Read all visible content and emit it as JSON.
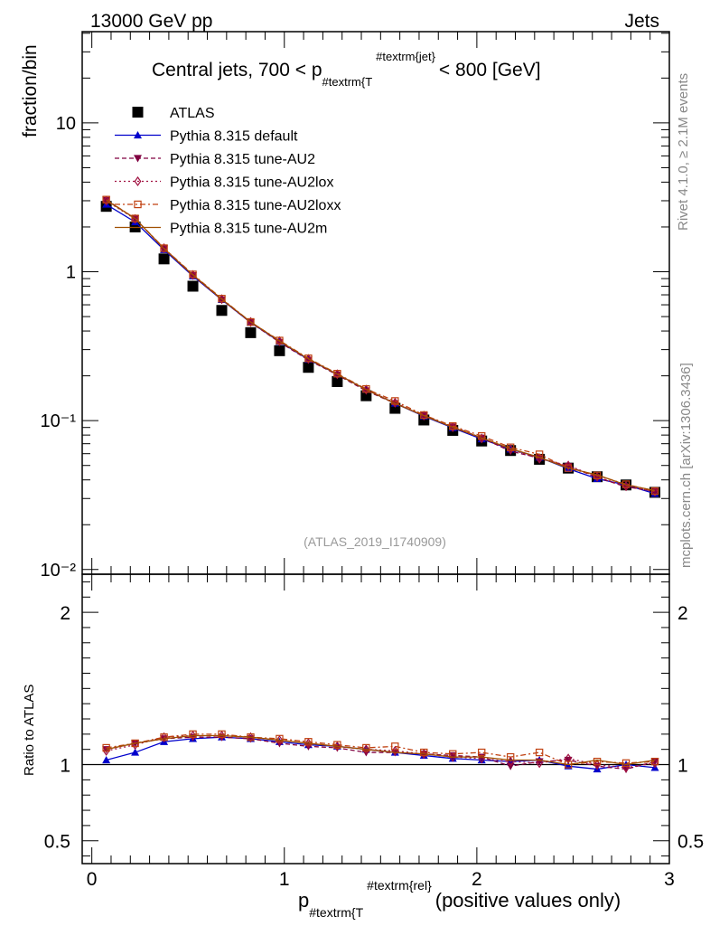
{
  "header": {
    "left": "13000 GeV pp",
    "right": "Jets"
  },
  "side": {
    "rivet": "Rivet 4.1.0, ≥ 2.1M events",
    "mcplots": "mcplots.cern.ch [arXiv:1306.3436]"
  },
  "chart_data": {
    "type": "line",
    "title": "Central jets, 700 < p",
    "title_sub": "#textrm{T",
    "title_sup": "#textrm{jet}",
    "title_tail": "< 800 [GeV]",
    "watermark": "(ATLAS_2019_I1740909)",
    "xlabel_main": "p",
    "xlabel_sub": "#textrm{T",
    "xlabel_sup": "#textrm{rel}",
    "xlabel_tail": "(positive values only)",
    "ylabel": "fraction/bin",
    "ratio_ylabel": "Ratio to ATLAS",
    "xlim": [
      -0.05,
      3.0
    ],
    "ylim": [
      0.0093,
      41
    ],
    "ratio_ylim": [
      0.35,
      2.25
    ],
    "x_ticks": [
      "0",
      "1",
      "2",
      "3"
    ],
    "y_ticks": [
      "10",
      "1",
      "10⁻¹",
      "10⁻²"
    ],
    "ratio_ticks": [
      "2",
      "1",
      "0.5"
    ],
    "x": [
      0.075,
      0.225,
      0.375,
      0.525,
      0.675,
      0.825,
      0.975,
      1.125,
      1.275,
      1.425,
      1.575,
      1.725,
      1.875,
      2.025,
      2.175,
      2.325,
      2.475,
      2.625,
      2.775,
      2.925
    ],
    "atlas": [
      2.75,
      2.0,
      1.22,
      0.8,
      0.55,
      0.39,
      0.295,
      0.228,
      0.183,
      0.147,
      0.121,
      0.101,
      0.086,
      0.073,
      0.063,
      0.055,
      0.048,
      0.042,
      0.037,
      0.033
    ],
    "series": [
      {
        "name": "ATLAS",
        "color": "#000000",
        "marker": "square",
        "dash": "",
        "values": [
          2.75,
          2.0,
          1.22,
          0.8,
          0.55,
          0.39,
          0.295,
          0.228,
          0.183,
          0.147,
          0.121,
          0.101,
          0.086,
          0.073,
          0.063,
          0.055,
          0.048,
          0.042,
          0.037,
          0.033
        ]
      },
      {
        "name": "Pythia 8.315 default",
        "color": "#0000cc",
        "marker": "triangle-up",
        "dash": "",
        "ratio": [
          1.03,
          1.08,
          1.15,
          1.17,
          1.18,
          1.17,
          1.15,
          1.13,
          1.12,
          1.1,
          1.08,
          1.06,
          1.04,
          1.03,
          1.02,
          1.03,
          0.99,
          0.97,
          1.0,
          0.98
        ]
      },
      {
        "name": "Pythia 8.315 tune-AU2",
        "color": "#800040",
        "marker": "triangle-down",
        "dash": "5,3",
        "ratio": [
          1.1,
          1.14,
          1.17,
          1.18,
          1.18,
          1.17,
          1.14,
          1.12,
          1.11,
          1.08,
          1.08,
          1.07,
          1.06,
          1.05,
          0.99,
          1.02,
          1.03,
          0.99,
          0.97,
          1.02
        ]
      },
      {
        "name": "Pythia 8.315 tune-AU2lox",
        "color": "#a01040",
        "marker": "diamond",
        "dash": "2,3",
        "ratio": [
          1.09,
          1.13,
          1.18,
          1.19,
          1.19,
          1.18,
          1.16,
          1.14,
          1.12,
          1.1,
          1.09,
          1.07,
          1.05,
          1.04,
          1.02,
          1.01,
          1.04,
          1.0,
          0.98,
          1.01
        ]
      },
      {
        "name": "Pythia 8.315 tune-AU2loxx",
        "color": "#c04010",
        "marker": "square-open",
        "dash": "6,3,2,3",
        "ratio": [
          1.11,
          1.14,
          1.18,
          1.2,
          1.2,
          1.18,
          1.17,
          1.15,
          1.13,
          1.11,
          1.12,
          1.08,
          1.07,
          1.08,
          1.05,
          1.08,
          1.0,
          1.02,
          1.01,
          1.02
        ]
      },
      {
        "name": "Pythia 8.315 tune-AU2m",
        "color": "#a05000",
        "marker": "none",
        "dash": "",
        "ratio": [
          1.1,
          1.14,
          1.17,
          1.19,
          1.19,
          1.18,
          1.16,
          1.14,
          1.12,
          1.1,
          1.08,
          1.07,
          1.05,
          1.05,
          1.03,
          1.03,
          1.0,
          1.03,
          1.0,
          1.03
        ]
      }
    ]
  }
}
